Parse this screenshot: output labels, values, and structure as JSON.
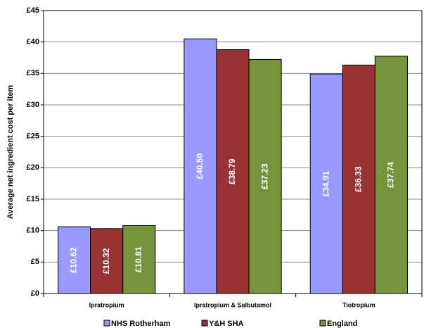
{
  "chart_data": {
    "type": "bar",
    "y_axis_label": "Average net ingredient cost  per item",
    "categories": [
      "Ipratropium",
      "Ipratropium & Salbutamol",
      "Tiotropium"
    ],
    "series": [
      {
        "name": "NHS Rotherham",
        "color": "#9999ff",
        "values": [
          10.62,
          40.5,
          34.91
        ],
        "value_labels": [
          "£10.62",
          "£40.50",
          "£34.91"
        ]
      },
      {
        "name": "Y&H SHA",
        "color": "#993333",
        "values": [
          10.32,
          38.79,
          36.33
        ],
        "value_labels": [
          "£10.32",
          "£38.79",
          "£36.33"
        ]
      },
      {
        "name": "England",
        "color": "#77933c",
        "values": [
          10.81,
          37.23,
          37.74
        ],
        "value_labels": [
          "£10.81",
          "£37.23",
          "£37.74"
        ]
      }
    ],
    "ylim": [
      0,
      45
    ],
    "yticks": [
      {
        "value": 0,
        "label": "£0"
      },
      {
        "value": 5,
        "label": "£5"
      },
      {
        "value": 10,
        "label": "£10"
      },
      {
        "value": 15,
        "label": "£15"
      },
      {
        "value": 20,
        "label": "£20"
      },
      {
        "value": 25,
        "label": "£25"
      },
      {
        "value": 30,
        "label": "£30"
      },
      {
        "value": 35,
        "label": "£35"
      },
      {
        "value": 40,
        "label": "£40"
      },
      {
        "value": 45,
        "label": "£45"
      }
    ],
    "grid": true
  }
}
